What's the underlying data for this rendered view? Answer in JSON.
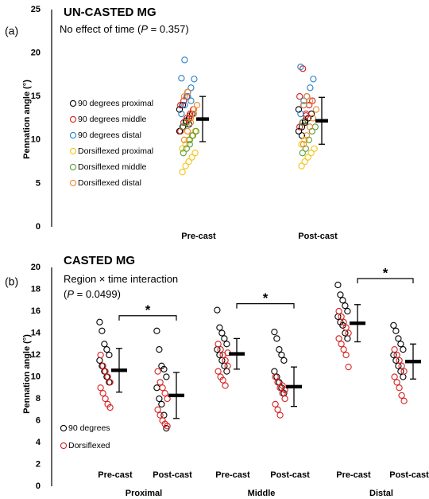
{
  "chart_data": [
    {
      "type": "strip",
      "panel": "(a)",
      "title": "UN-CASTED MG",
      "annotation": [
        [
          "No effect of time (",
          "P",
          " = 0.357)"
        ]
      ],
      "ylabel": "Pennation angle (°)",
      "ylim": [
        0,
        25
      ],
      "yticks": [
        0,
        5,
        10,
        15,
        20,
        25
      ],
      "categories": [
        "Pre-cast",
        "Post-cast"
      ],
      "series": [
        {
          "name": "90 degrees proximal",
          "color": "#000000",
          "values": [
            [
              11,
              11.5,
              12,
              12.5,
              13,
              13.5,
              14,
              12.2,
              11.8,
              10.5
            ],
            [
              11,
              11.5,
              12,
              12.5,
              13,
              13.5,
              10.5,
              12.2
            ]
          ]
        },
        {
          "name": "90 degrees middle",
          "color": "#d62020",
          "values": [
            [
              11,
              12,
              12.5,
              13,
              13.5,
              14,
              14.5,
              15,
              12.8
            ],
            [
              11.5,
              12,
              13,
              14,
              14.5,
              15,
              18.2,
              12.8
            ]
          ]
        },
        {
          "name": "90 degrees distal",
          "color": "#2a7fc9",
          "values": [
            [
              13,
              14,
              15,
              16,
              17,
              17.1,
              19.2,
              15.5,
              14.5
            ],
            [
              13,
              14,
              15,
              16,
              17,
              18.4,
              14.5
            ]
          ]
        },
        {
          "name": "Dorsiflexed proximal",
          "color": "#f2c417",
          "values": [
            [
              6.3,
              7,
              7.5,
              8,
              8.5,
              9,
              9.5,
              10,
              10.5,
              11
            ],
            [
              7,
              7.5,
              8,
              8.5,
              9,
              9.5,
              10
            ]
          ]
        },
        {
          "name": "Dorsiflexed middle",
          "color": "#5a9a3a",
          "values": [
            [
              8.5,
              9,
              10,
              10.5,
              11,
              11.5,
              12,
              9.5
            ],
            [
              8.5,
              9,
              10,
              11,
              11.5,
              12
            ]
          ]
        },
        {
          "name": "Dorsiflexed distal",
          "color": "#f08a30",
          "values": [
            [
              10,
              11,
              12,
              13,
              14,
              15,
              15.5,
              12.5,
              13.5
            ],
            [
              9.5,
              10.5,
              11.5,
              12.5,
              13.5,
              14,
              15,
              14.5
            ]
          ]
        }
      ],
      "means": [
        12.4,
        12.2
      ],
      "sds": [
        2.6,
        2.7
      ]
    },
    {
      "type": "strip",
      "panel": "(b)",
      "title": "CASTED MG",
      "annotation": [
        [
          "Region × time interaction"
        ],
        [
          "(",
          "P",
          " = 0.0499)"
        ]
      ],
      "ylabel": "Pennation angle (°)",
      "ylim": [
        0,
        20
      ],
      "yticks": [
        0,
        2,
        4,
        6,
        8,
        10,
        12,
        14,
        16,
        18,
        20
      ],
      "categories": [
        "Pre-cast",
        "Post-cast",
        "Pre-cast",
        "Post-cast",
        "Pre-cast",
        "Post-cast"
      ],
      "groups": [
        "Proximal",
        "Middle",
        "Distal"
      ],
      "series": [
        {
          "name": "90 degrees",
          "color": "#000000",
          "values": [
            [
              15,
              14.2,
              13,
              12.5,
              12,
              11.5,
              11,
              10.5,
              10,
              9.5
            ],
            [
              14.2,
              12.5,
              11,
              10.7,
              10,
              9,
              8,
              7.5,
              6.5,
              5.3
            ],
            [
              16.1,
              14.5,
              14,
              13.5,
              13,
              12.5,
              12,
              11.5,
              11,
              10.5
            ],
            [
              14.1,
              13.5,
              12.5,
              12,
              11.5,
              10.5,
              10,
              9.5,
              9,
              8.5
            ],
            [
              18.4,
              17.5,
              17,
              16.5,
              16,
              15.5,
              15,
              14.7,
              14,
              13.5
            ],
            [
              14.7,
              14.2,
              13.5,
              13,
              12.5,
              12,
              11.5,
              11,
              10.5,
              10
            ]
          ]
        },
        {
          "name": "Dorsiflexed",
          "color": "#d62020",
          "values": [
            [
              12,
              11,
              10.5,
              10,
              9.5,
              9,
              8.5,
              8,
              7.5,
              7.2
            ],
            [
              10.5,
              9.5,
              9,
              8.5,
              8,
              7,
              6.5,
              6,
              5.7,
              5.5
            ],
            [
              13,
              12.5,
              12,
              11.5,
              11,
              10.5,
              10,
              9.7,
              9.2,
              12.2
            ],
            [
              10,
              9.5,
              9,
              8.5,
              8,
              7.5,
              7,
              6.5,
              9.2,
              8.8
            ],
            [
              16,
              15.5,
              15,
              14.5,
              14,
              13.5,
              13,
              12.5,
              12,
              10.9
            ],
            [
              12.5,
              12,
              11.5,
              11,
              10.5,
              10,
              9.5,
              9,
              8.3,
              7.8
            ]
          ]
        }
      ],
      "means": [
        10.6,
        8.3,
        12.1,
        9.1,
        14.9,
        11.4
      ],
      "sds": [
        2.0,
        2.1,
        1.4,
        1.8,
        1.7,
        1.6
      ],
      "significance": [
        {
          "between": [
            0,
            1
          ],
          "label": "*"
        },
        {
          "between": [
            2,
            3
          ],
          "label": "*"
        },
        {
          "between": [
            4,
            5
          ],
          "label": "*"
        }
      ]
    }
  ]
}
